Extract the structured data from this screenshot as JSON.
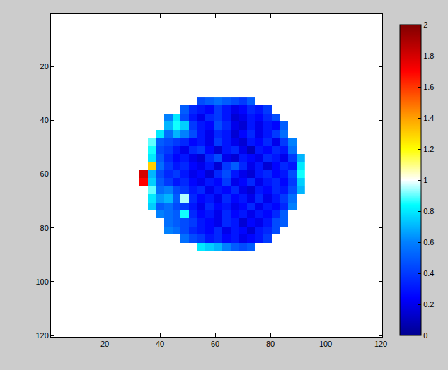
{
  "chart_data": {
    "type": "heatmap",
    "x": [
      34,
      37,
      40,
      43,
      46,
      49,
      52,
      55,
      58,
      61,
      64,
      67,
      70,
      73,
      76,
      79,
      82,
      85,
      88,
      91
    ],
    "y": [
      33,
      36,
      39,
      42,
      45,
      48,
      51,
      54,
      57,
      60,
      63,
      66,
      69,
      72,
      75,
      78,
      81,
      84,
      87
    ],
    "z": [
      [
        null,
        null,
        null,
        null,
        null,
        null,
        null,
        0.45,
        0.5,
        0.55,
        0.5,
        0.45,
        0.4,
        0.5,
        null,
        null,
        null,
        null,
        null,
        null
      ],
      [
        null,
        null,
        null,
        null,
        null,
        0.5,
        0.35,
        0.3,
        0.25,
        0.4,
        0.3,
        0.2,
        0.25,
        0.35,
        0.3,
        0.4,
        null,
        null,
        null,
        null
      ],
      [
        null,
        null,
        null,
        0.6,
        0.8,
        0.45,
        0.3,
        0.2,
        0.35,
        0.4,
        0.3,
        0.15,
        0.2,
        0.3,
        0.25,
        0.35,
        0.45,
        null,
        null,
        null
      ],
      [
        null,
        null,
        null,
        0.7,
        0.85,
        0.75,
        0.4,
        0.3,
        0.25,
        0.45,
        0.35,
        0.2,
        0.15,
        0.3,
        0.2,
        0.3,
        0.25,
        0.5,
        null,
        null
      ],
      [
        null,
        null,
        0.8,
        0.55,
        0.7,
        0.6,
        0.45,
        0.3,
        0.2,
        0.35,
        0.3,
        0.15,
        0.25,
        0.35,
        0.2,
        0.3,
        0.4,
        0.55,
        null,
        null
      ],
      [
        null,
        0.9,
        0.5,
        0.45,
        0.4,
        0.35,
        0.25,
        0.3,
        0.2,
        0.4,
        0.3,
        0.2,
        0.15,
        0.3,
        0.25,
        0.35,
        0.2,
        0.4,
        0.6,
        null
      ],
      [
        null,
        0.85,
        0.45,
        0.4,
        0.3,
        0.2,
        0.35,
        0.4,
        0.25,
        0.15,
        0.3,
        0.35,
        0.2,
        0.1,
        0.3,
        0.25,
        0.35,
        0.3,
        0.55,
        null
      ],
      [
        null,
        0.8,
        0.5,
        0.35,
        0.25,
        0.3,
        0.2,
        0.15,
        0.35,
        0.45,
        0.2,
        0.15,
        0.3,
        0.25,
        0.2,
        0.35,
        0.3,
        0.2,
        0.4,
        0.7
      ],
      [
        null,
        1.3,
        0.55,
        0.4,
        0.3,
        0.35,
        0.25,
        0.2,
        0.3,
        0.15,
        0.4,
        0.5,
        0.35,
        0.2,
        0.3,
        0.15,
        0.25,
        0.35,
        0.3,
        0.8
      ],
      [
        1.8,
        0.7,
        0.45,
        0.35,
        0.4,
        0.3,
        0.2,
        0.25,
        0.15,
        0.35,
        0.45,
        0.3,
        0.2,
        0.15,
        0.3,
        0.35,
        0.25,
        0.3,
        0.45,
        0.85
      ],
      [
        1.7,
        0.75,
        0.5,
        0.4,
        0.3,
        0.35,
        0.25,
        0.2,
        0.3,
        0.25,
        0.4,
        0.2,
        0.25,
        0.35,
        0.2,
        0.3,
        0.35,
        0.25,
        0.4,
        0.75
      ],
      [
        null,
        0.9,
        0.55,
        0.6,
        0.45,
        0.4,
        0.3,
        0.35,
        0.2,
        0.3,
        0.25,
        0.35,
        0.2,
        0.15,
        0.3,
        0.25,
        0.35,
        0.3,
        0.45,
        0.7
      ],
      [
        null,
        0.8,
        0.65,
        0.7,
        0.5,
        0.95,
        0.35,
        0.25,
        0.3,
        0.2,
        0.35,
        0.25,
        0.3,
        0.2,
        0.35,
        0.2,
        0.3,
        0.4,
        0.55,
        null
      ],
      [
        null,
        0.75,
        0.5,
        0.55,
        0.45,
        0.4,
        0.3,
        0.2,
        0.35,
        0.25,
        0.3,
        0.2,
        0.25,
        0.35,
        0.2,
        0.3,
        0.25,
        0.35,
        0.6,
        null
      ],
      [
        null,
        null,
        0.6,
        0.55,
        0.5,
        0.85,
        0.35,
        0.25,
        0.3,
        0.2,
        0.35,
        0.25,
        0.3,
        0.2,
        0.3,
        0.25,
        0.35,
        0.5,
        null,
        null
      ],
      [
        null,
        null,
        null,
        0.55,
        0.5,
        0.45,
        0.4,
        0.3,
        0.25,
        0.2,
        0.35,
        0.3,
        0.15,
        0.25,
        0.2,
        0.3,
        0.45,
        0.5,
        null,
        null
      ],
      [
        null,
        null,
        null,
        0.6,
        0.55,
        0.45,
        0.35,
        0.3,
        0.25,
        0.35,
        0.2,
        0.3,
        0.25,
        0.15,
        0.3,
        0.35,
        0.45,
        null,
        null,
        null
      ],
      [
        null,
        null,
        null,
        null,
        null,
        0.55,
        0.45,
        0.4,
        0.3,
        0.35,
        0.25,
        0.3,
        0.2,
        0.25,
        0.3,
        0.4,
        null,
        null,
        null,
        null
      ],
      [
        null,
        null,
        null,
        null,
        null,
        null,
        null,
        0.8,
        0.75,
        0.7,
        0.6,
        0.5,
        0.45,
        0.5,
        null,
        null,
        null,
        null,
        null,
        null
      ]
    ],
    "xlim": [
      0.5,
      120.5
    ],
    "ylim": [
      120.5,
      0.5
    ],
    "xticks": [
      20,
      40,
      60,
      80,
      100,
      120
    ],
    "yticks": [
      20,
      40,
      60,
      80,
      100,
      120
    ],
    "zlim": [
      0,
      2
    ],
    "zticks": [
      0,
      0.2,
      0.4,
      0.6,
      0.8,
      1,
      1.2,
      1.4,
      1.6,
      1.8,
      2
    ],
    "grid": false
  }
}
